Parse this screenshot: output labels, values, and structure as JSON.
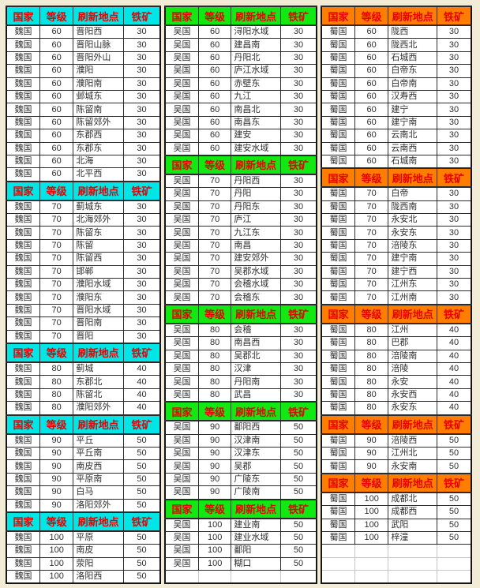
{
  "colors": {
    "page_bg": "#f2ecd6",
    "grid_border": "#2b2b2b",
    "header_text": "#e80000",
    "cell_bg": "#ffffff",
    "cell_text": "#2e2e2e",
    "wei_header_bg": "#00e6e6",
    "wu_header_bg": "#12e812",
    "shu_header_bg": "#ff7d00",
    "empty_row_border": "#c6c6c6"
  },
  "column_headers": {
    "country": "国家",
    "level": "等级",
    "location": "刷新地点",
    "iron": "铁矿"
  },
  "tables": [
    {
      "key": "wei",
      "country": "魏国",
      "header_bg": "#00e6e6",
      "trailing_empty_rows": 0,
      "sections": [
        {
          "level": "60",
          "iron": "30",
          "locations": [
            "晋阳西",
            "晋阳山脉",
            "晋阳外山",
            "濮阳",
            "濮阳南",
            "邺城东",
            "陈留南",
            "陈留郊外",
            "东郡西",
            "东郡东",
            "北海",
            "北平西"
          ]
        },
        {
          "level": "70",
          "iron": "30",
          "locations": [
            "蓟城东",
            "北海郊外",
            "陈留东",
            "陈留",
            "陈留西",
            "邯郸",
            "濮阳水域",
            "濮阳东",
            "晋阳水域",
            "晋阳南",
            "晋阳"
          ]
        },
        {
          "level": "80",
          "iron": "40",
          "locations": [
            "蓟城",
            "东郡北",
            "陈留北",
            "濮阳郊外"
          ]
        },
        {
          "level": "90",
          "iron": "50",
          "locations": [
            "平丘",
            "平丘南",
            "南皮西",
            "平原南",
            "白马",
            "洛阳郊外"
          ]
        },
        {
          "level": "100",
          "iron": "50",
          "locations": [
            "平原",
            "南皮",
            "荥阳",
            "洛阳西"
          ]
        }
      ]
    },
    {
      "key": "wu",
      "country": "吴国",
      "header_bg": "#12e812",
      "trailing_empty_rows": 1,
      "sections": [
        {
          "level": "60",
          "iron": "30",
          "locations": [
            "浔阳水域",
            "建昌南",
            "丹阳北",
            "庐江水域",
            "赤壁东",
            "九江",
            "南昌北",
            "南昌东",
            "建安",
            "建安水域"
          ]
        },
        {
          "level": "70",
          "iron": "30",
          "locations": [
            "丹阳西",
            "丹阳",
            "丹阳东",
            "庐江",
            "九江东",
            "南昌",
            "建安郊外",
            "吴郡水域",
            "会稽水域",
            "会稽东"
          ]
        },
        {
          "level": "80",
          "iron": "30",
          "locations": [
            "会稽",
            "南昌西",
            "吴郡北",
            "汉津",
            "丹阳南",
            "武昌"
          ]
        },
        {
          "level": "90",
          "iron": "50",
          "locations": [
            "鄱阳西",
            "汉津南",
            "汉津东",
            "吴郡",
            "广陵东",
            "广陵南"
          ]
        },
        {
          "level": "100",
          "iron": "50",
          "locations": [
            "建业南",
            "建业水域",
            "鄱阳",
            "糊口"
          ]
        }
      ]
    },
    {
      "key": "shu",
      "country": "蜀国",
      "header_bg": "#ff7d00",
      "trailing_empty_rows": 3,
      "sections": [
        {
          "level": "60",
          "iron": "30",
          "locations": [
            "陇西",
            "陇西北",
            "石城西",
            "白帝东",
            "白帝南",
            "汉寿西",
            "建宁",
            "建宁南",
            "云南北",
            "云南西",
            "石城南"
          ]
        },
        {
          "level": "70",
          "iron": "30",
          "locations": [
            "白帝",
            "陇西南",
            "永安北",
            "永安东",
            "涪陵东",
            "建宁南",
            "建宁西",
            "江州东",
            "江州南"
          ]
        },
        {
          "level": "80",
          "iron": "40",
          "locations": [
            "江州",
            "巴郡",
            "涪陵南",
            "涪陵",
            "永安",
            "永安西",
            "永安东"
          ]
        },
        {
          "level": "90",
          "iron": "50",
          "locations": [
            "涪陵西",
            "江州北",
            "永安南"
          ]
        },
        {
          "level": "100",
          "iron": "50",
          "locations": [
            "成都北",
            "成都西",
            "武阳",
            "梓潼"
          ]
        }
      ]
    }
  ]
}
